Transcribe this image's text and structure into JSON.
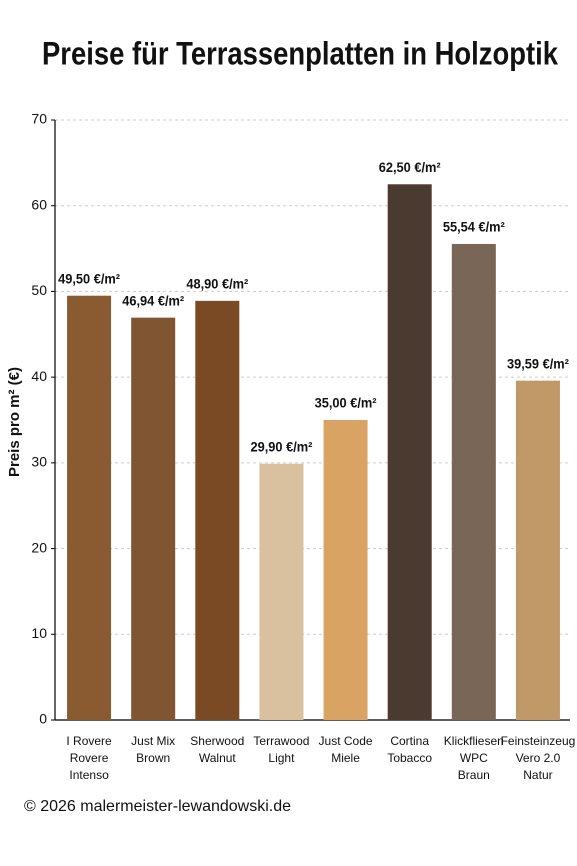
{
  "chart_data": {
    "type": "bar",
    "title": "Preise für Terrassenplatten in Holzoptik",
    "y_label": "Preis pro m² (€)",
    "categories": [
      [
        "I Rovere",
        "Rovere",
        "Intenso"
      ],
      [
        "Just Mix",
        "Brown"
      ],
      [
        "Sherwood",
        "Walnut"
      ],
      [
        "Terrawood",
        "Light"
      ],
      [
        "Just Code",
        "Miele"
      ],
      [
        "Cortina",
        "Tobacco"
      ],
      [
        "Klickfliesen",
        "WPC",
        "Braun"
      ],
      [
        "Feinsteinzeug",
        "Vero 2.0",
        "Natur"
      ]
    ],
    "values": [
      49.5,
      46.94,
      48.9,
      29.9,
      35.0,
      62.5,
      55.54,
      39.59
    ],
    "value_labels": [
      "49,50 €/m²",
      "46,94 €/m²",
      "48,90 €/m²",
      "29,90 €/m²",
      "35,00 €/m²",
      "62,50 €/m²",
      "55,54 €/m²",
      "39,59 €/m²"
    ],
    "colors": [
      "#8a5a30",
      "#7f5532",
      "#7a4a24",
      "#d9c1a0",
      "#d9a463",
      "#4a3a30",
      "#7a6656",
      "#c19868"
    ],
    "ylim": [
      0,
      70
    ],
    "yticks": [
      0,
      10,
      20,
      30,
      40,
      50,
      60,
      70
    ],
    "grid": true,
    "credit": "© 2026 malermeister-lewandowski.de"
  }
}
